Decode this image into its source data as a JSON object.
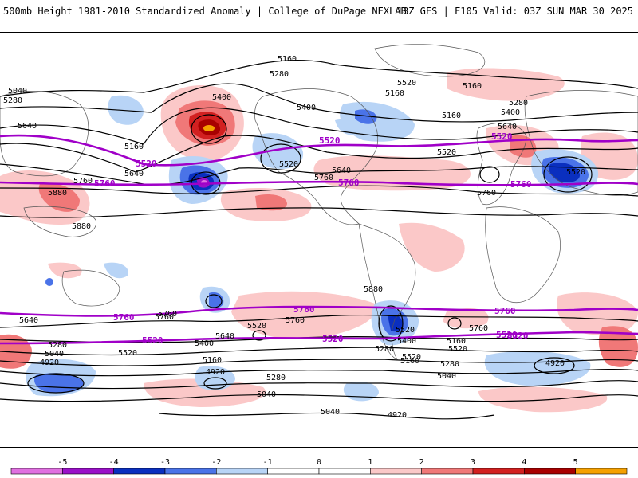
{
  "header": {
    "title": "500mb Height 1981-2010 Standardized Anomaly | College of DuPage NEXLAB",
    "run": "18Z GFS | F105 Valid: 03Z SUN MAR 30 2025"
  },
  "colors": {
    "neg5": "#e070e0",
    "neg4": "#9a10c8",
    "neg3": "#0a2fbf",
    "neg2": "#4a73e8",
    "neg1": "#b8d4f6",
    "zero": "#ffffff",
    "pos1": "#fbc8c8",
    "pos2": "#f07878",
    "pos3": "#d22020",
    "pos4": "#a80000",
    "pos5": "#f5a000",
    "contour": "#000000",
    "highlight": "#a000c8",
    "coast": "#555555"
  },
  "contour_labels": [
    "5160",
    "5280",
    "5160",
    "5040",
    "5280",
    "5400",
    "5160",
    "5160",
    "5280",
    "5400",
    "5640",
    "5520",
    "5520",
    "5640",
    "5760",
    "5880",
    "5880",
    "5160",
    "5520",
    "5400",
    "5640",
    "5520",
    "5760",
    "5760",
    "5880",
    "5640",
    "5760",
    "5520",
    "5760",
    "5640",
    "5520",
    "5400",
    "5280",
    "5160",
    "5040",
    "4920",
    "5280",
    "5040",
    "5520",
    "4920",
    "5160",
    "5280",
    "5040",
    "4920",
    "5760",
    "5640",
    "5520",
    "5400",
    "5280",
    "5160",
    "5040",
    "4920",
    "5520",
    "5760"
  ],
  "highlight_labels": [
    "5520",
    "5760",
    "5520",
    "5760",
    "5520",
    "5760",
    "5760",
    "5520",
    "5520",
    "5760",
    "5520",
    "5520",
    "5760"
  ],
  "colorbar": {
    "ticks": [
      "-5",
      "-4",
      "-3",
      "-2",
      "-1",
      "0",
      "1",
      "2",
      "3",
      "4",
      "5"
    ]
  }
}
